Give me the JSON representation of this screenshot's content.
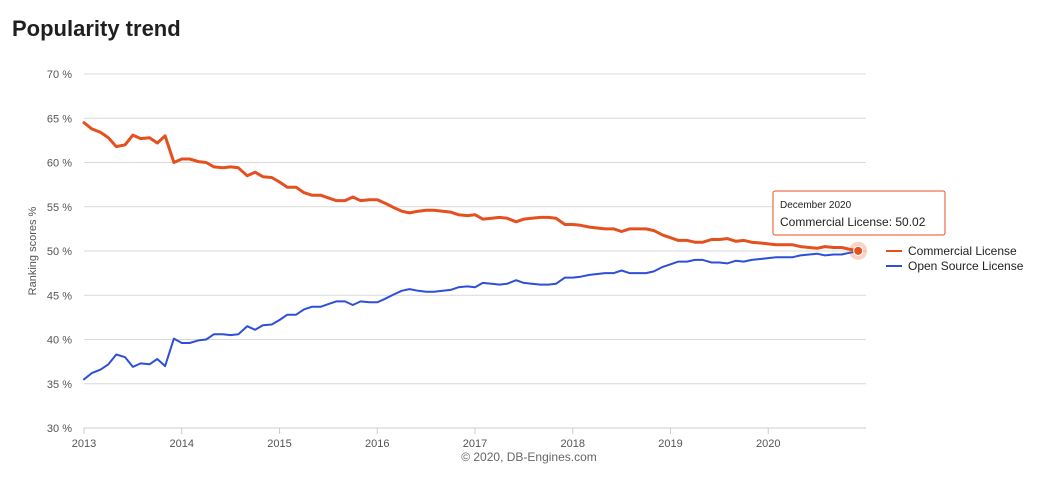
{
  "page": {
    "title": "Popularity trend"
  },
  "chart_data": {
    "type": "line",
    "ylabel": "Ranking scores %",
    "ylim": [
      30,
      70
    ],
    "yticks": [
      30,
      35,
      40,
      45,
      50,
      55,
      60,
      65,
      70
    ],
    "ytick_labels": [
      "30 %",
      "35 %",
      "40 %",
      "45 %",
      "50 %",
      "55 %",
      "60 %",
      "65 %",
      "70 %"
    ],
    "xlim": [
      2013.0,
      2021.0
    ],
    "xticks": [
      2013,
      2014,
      2015,
      2016,
      2017,
      2018,
      2019,
      2020
    ],
    "xtick_labels": [
      "2013",
      "2014",
      "2015",
      "2016",
      "2017",
      "2018",
      "2019",
      "2020"
    ],
    "grid": true,
    "legend_position": "right",
    "credits": "© 2020, DB-Engines.com",
    "series": [
      {
        "name": "Commercial License",
        "color": "#e4501e",
        "points": [
          [
            2013.0,
            64.5
          ],
          [
            2013.08,
            63.8
          ],
          [
            2013.17,
            63.4
          ],
          [
            2013.25,
            62.8
          ],
          [
            2013.33,
            61.8
          ],
          [
            2013.42,
            62.0
          ],
          [
            2013.5,
            63.1
          ],
          [
            2013.58,
            62.7
          ],
          [
            2013.67,
            62.8
          ],
          [
            2013.75,
            62.2
          ],
          [
            2013.83,
            63.0
          ],
          [
            2013.92,
            60.0
          ],
          [
            2014.0,
            60.4
          ],
          [
            2014.08,
            60.4
          ],
          [
            2014.17,
            60.1
          ],
          [
            2014.25,
            60.0
          ],
          [
            2014.33,
            59.5
          ],
          [
            2014.42,
            59.4
          ],
          [
            2014.5,
            59.5
          ],
          [
            2014.58,
            59.4
          ],
          [
            2014.67,
            58.5
          ],
          [
            2014.75,
            58.9
          ],
          [
            2014.83,
            58.4
          ],
          [
            2014.92,
            58.3
          ],
          [
            2015.0,
            57.8
          ],
          [
            2015.08,
            57.2
          ],
          [
            2015.17,
            57.2
          ],
          [
            2015.25,
            56.6
          ],
          [
            2015.33,
            56.3
          ],
          [
            2015.42,
            56.3
          ],
          [
            2015.5,
            56.0
          ],
          [
            2015.58,
            55.7
          ],
          [
            2015.67,
            55.7
          ],
          [
            2015.75,
            56.1
          ],
          [
            2015.83,
            55.7
          ],
          [
            2015.92,
            55.8
          ],
          [
            2016.0,
            55.8
          ],
          [
            2016.08,
            55.4
          ],
          [
            2016.17,
            54.9
          ],
          [
            2016.25,
            54.5
          ],
          [
            2016.33,
            54.3
          ],
          [
            2016.42,
            54.5
          ],
          [
            2016.5,
            54.6
          ],
          [
            2016.58,
            54.6
          ],
          [
            2016.67,
            54.5
          ],
          [
            2016.75,
            54.4
          ],
          [
            2016.83,
            54.1
          ],
          [
            2016.92,
            54.0
          ],
          [
            2017.0,
            54.1
          ],
          [
            2017.08,
            53.6
          ],
          [
            2017.17,
            53.7
          ],
          [
            2017.25,
            53.8
          ],
          [
            2017.33,
            53.7
          ],
          [
            2017.42,
            53.3
          ],
          [
            2017.5,
            53.6
          ],
          [
            2017.58,
            53.7
          ],
          [
            2017.67,
            53.8
          ],
          [
            2017.75,
            53.8
          ],
          [
            2017.83,
            53.7
          ],
          [
            2017.92,
            53.0
          ],
          [
            2018.0,
            53.0
          ],
          [
            2018.08,
            52.9
          ],
          [
            2018.17,
            52.7
          ],
          [
            2018.25,
            52.6
          ],
          [
            2018.33,
            52.5
          ],
          [
            2018.42,
            52.5
          ],
          [
            2018.5,
            52.2
          ],
          [
            2018.58,
            52.5
          ],
          [
            2018.67,
            52.5
          ],
          [
            2018.75,
            52.5
          ],
          [
            2018.83,
            52.3
          ],
          [
            2018.92,
            51.8
          ],
          [
            2019.0,
            51.5
          ],
          [
            2019.08,
            51.2
          ],
          [
            2019.17,
            51.2
          ],
          [
            2019.25,
            51.0
          ],
          [
            2019.33,
            51.0
          ],
          [
            2019.42,
            51.3
          ],
          [
            2019.5,
            51.3
          ],
          [
            2019.58,
            51.4
          ],
          [
            2019.67,
            51.1
          ],
          [
            2019.75,
            51.2
          ],
          [
            2019.83,
            51.0
          ],
          [
            2019.92,
            50.9
          ],
          [
            2020.0,
            50.8
          ],
          [
            2020.08,
            50.7
          ],
          [
            2020.17,
            50.7
          ],
          [
            2020.25,
            50.7
          ],
          [
            2020.33,
            50.5
          ],
          [
            2020.42,
            50.4
          ],
          [
            2020.5,
            50.3
          ],
          [
            2020.58,
            50.5
          ],
          [
            2020.67,
            50.4
          ],
          [
            2020.75,
            50.4
          ],
          [
            2020.83,
            50.2
          ],
          [
            2020.92,
            50.02
          ]
        ]
      },
      {
        "name": "Open Source License",
        "color": "#2f4fd6",
        "points": [
          [
            2013.0,
            35.5
          ],
          [
            2013.08,
            36.2
          ],
          [
            2013.17,
            36.6
          ],
          [
            2013.25,
            37.2
          ],
          [
            2013.33,
            38.3
          ],
          [
            2013.42,
            38.0
          ],
          [
            2013.5,
            36.9
          ],
          [
            2013.58,
            37.3
          ],
          [
            2013.67,
            37.2
          ],
          [
            2013.75,
            37.8
          ],
          [
            2013.83,
            37.0
          ],
          [
            2013.92,
            40.1
          ],
          [
            2014.0,
            39.6
          ],
          [
            2014.08,
            39.6
          ],
          [
            2014.17,
            39.9
          ],
          [
            2014.25,
            40.0
          ],
          [
            2014.33,
            40.6
          ],
          [
            2014.42,
            40.6
          ],
          [
            2014.5,
            40.5
          ],
          [
            2014.58,
            40.6
          ],
          [
            2014.67,
            41.5
          ],
          [
            2014.75,
            41.1
          ],
          [
            2014.83,
            41.6
          ],
          [
            2014.92,
            41.7
          ],
          [
            2015.0,
            42.2
          ],
          [
            2015.08,
            42.8
          ],
          [
            2015.17,
            42.8
          ],
          [
            2015.25,
            43.4
          ],
          [
            2015.33,
            43.7
          ],
          [
            2015.42,
            43.7
          ],
          [
            2015.5,
            44.0
          ],
          [
            2015.58,
            44.3
          ],
          [
            2015.67,
            44.3
          ],
          [
            2015.75,
            43.9
          ],
          [
            2015.83,
            44.3
          ],
          [
            2015.92,
            44.2
          ],
          [
            2016.0,
            44.2
          ],
          [
            2016.08,
            44.6
          ],
          [
            2016.17,
            45.1
          ],
          [
            2016.25,
            45.5
          ],
          [
            2016.33,
            45.7
          ],
          [
            2016.42,
            45.5
          ],
          [
            2016.5,
            45.4
          ],
          [
            2016.58,
            45.4
          ],
          [
            2016.67,
            45.5
          ],
          [
            2016.75,
            45.6
          ],
          [
            2016.83,
            45.9
          ],
          [
            2016.92,
            46.0
          ],
          [
            2017.0,
            45.9
          ],
          [
            2017.08,
            46.4
          ],
          [
            2017.17,
            46.3
          ],
          [
            2017.25,
            46.2
          ],
          [
            2017.33,
            46.3
          ],
          [
            2017.42,
            46.7
          ],
          [
            2017.5,
            46.4
          ],
          [
            2017.58,
            46.3
          ],
          [
            2017.67,
            46.2
          ],
          [
            2017.75,
            46.2
          ],
          [
            2017.83,
            46.3
          ],
          [
            2017.92,
            47.0
          ],
          [
            2018.0,
            47.0
          ],
          [
            2018.08,
            47.1
          ],
          [
            2018.17,
            47.3
          ],
          [
            2018.25,
            47.4
          ],
          [
            2018.33,
            47.5
          ],
          [
            2018.42,
            47.5
          ],
          [
            2018.5,
            47.8
          ],
          [
            2018.58,
            47.5
          ],
          [
            2018.67,
            47.5
          ],
          [
            2018.75,
            47.5
          ],
          [
            2018.83,
            47.7
          ],
          [
            2018.92,
            48.2
          ],
          [
            2019.0,
            48.5
          ],
          [
            2019.08,
            48.8
          ],
          [
            2019.17,
            48.8
          ],
          [
            2019.25,
            49.0
          ],
          [
            2019.33,
            49.0
          ],
          [
            2019.42,
            48.7
          ],
          [
            2019.5,
            48.7
          ],
          [
            2019.58,
            48.6
          ],
          [
            2019.67,
            48.9
          ],
          [
            2019.75,
            48.8
          ],
          [
            2019.83,
            49.0
          ],
          [
            2019.92,
            49.1
          ],
          [
            2020.0,
            49.2
          ],
          [
            2020.08,
            49.3
          ],
          [
            2020.17,
            49.3
          ],
          [
            2020.25,
            49.3
          ],
          [
            2020.33,
            49.5
          ],
          [
            2020.42,
            49.6
          ],
          [
            2020.5,
            49.7
          ],
          [
            2020.58,
            49.5
          ],
          [
            2020.67,
            49.6
          ],
          [
            2020.75,
            49.6
          ],
          [
            2020.83,
            49.8
          ],
          [
            2020.92,
            49.98
          ]
        ]
      }
    ],
    "tooltip": {
      "series_index": 0,
      "point_index": 95,
      "header": "December 2020",
      "text": "Commercial License: 50.02"
    }
  }
}
